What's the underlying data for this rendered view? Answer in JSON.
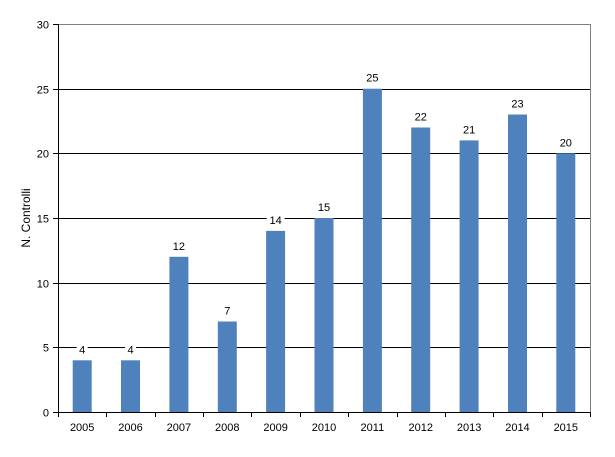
{
  "chart_data": {
    "type": "bar",
    "title": "",
    "xlabel": "",
    "ylabel": "N. Controlli",
    "categories": [
      "2005",
      "2006",
      "2007",
      "2008",
      "2009",
      "2010",
      "2011",
      "2012",
      "2013",
      "2014",
      "2015"
    ],
    "values": [
      4,
      4,
      12,
      7,
      14,
      15,
      25,
      22,
      21,
      23,
      20
    ],
    "ylim": [
      0,
      30
    ],
    "yticks": [
      0,
      5,
      10,
      15,
      20,
      25,
      30
    ],
    "grid": true,
    "legend": null,
    "data_labels": true,
    "bar_color": "#4F81BD"
  }
}
